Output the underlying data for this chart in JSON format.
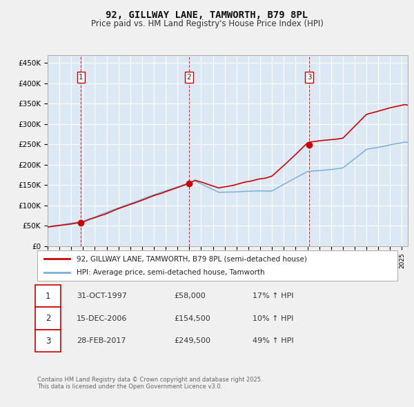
{
  "title1": "92, GILLWAY LANE, TAMWORTH, B79 8PL",
  "title2": "Price paid vs. HM Land Registry's House Price Index (HPI)",
  "legend_line1": "92, GILLWAY LANE, TAMWORTH, B79 8PL (semi-detached house)",
  "legend_line2": "HPI: Average price, semi-detached house, Tamworth",
  "table_rows": [
    {
      "num": "1",
      "date": "31-OCT-1997",
      "price": "£58,000",
      "change": "17% ↑ HPI"
    },
    {
      "num": "2",
      "date": "15-DEC-2006",
      "price": "£154,500",
      "change": "10% ↑ HPI"
    },
    {
      "num": "3",
      "date": "28-FEB-2017",
      "price": "£249,500",
      "change": "49% ↑ HPI"
    }
  ],
  "footnote": "Contains HM Land Registry data © Crown copyright and database right 2025.\nThis data is licensed under the Open Government Licence v3.0.",
  "sale_dates": [
    1997.83,
    2006.96,
    2017.16
  ],
  "sale_prices": [
    58000,
    154500,
    249500
  ],
  "sale_labels": [
    "1",
    "2",
    "3"
  ],
  "vline_dates": [
    1997.83,
    2006.96,
    2017.16
  ],
  "red_line_color": "#cc0000",
  "blue_line_color": "#7ab0d4",
  "plot_bg_color": "#dce9f5",
  "background_color": "#f0f0f0",
  "grid_color": "#ffffff",
  "ylim": [
    0,
    470000
  ],
  "xlim": [
    1995.0,
    2025.5
  ],
  "yticks": [
    0,
    50000,
    100000,
    150000,
    200000,
    250000,
    300000,
    350000,
    400000,
    450000
  ],
  "ytick_labels": [
    "£0",
    "£50K",
    "£100K",
    "£150K",
    "£200K",
    "£250K",
    "£300K",
    "£350K",
    "£400K",
    "£450K"
  ]
}
